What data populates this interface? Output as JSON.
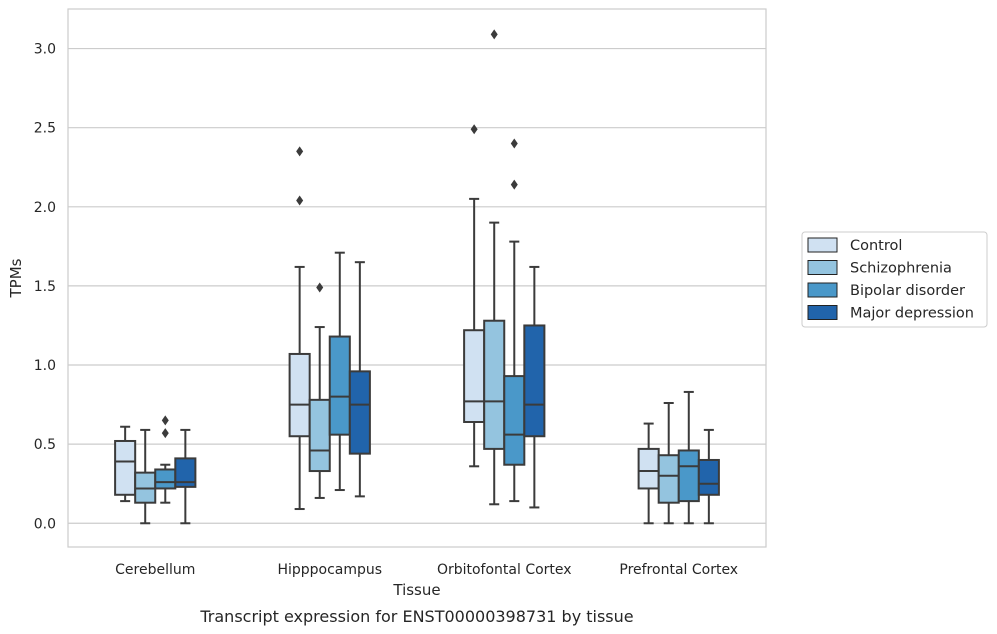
{
  "chart_data": {
    "type": "box",
    "xlabel": "Tissue",
    "ylabel": "TPMs",
    "caption": "Transcript expression for ENST00000398731 by tissue",
    "ylim": [
      -0.15,
      3.25
    ],
    "yticks": [
      0.0,
      0.5,
      1.0,
      1.5,
      2.0,
      2.5,
      3.0
    ],
    "ytick_labels": [
      "0.0",
      "0.5",
      "1.0",
      "1.5",
      "2.0",
      "2.5",
      "3.0"
    ],
    "grid": "horizontal",
    "legend_position": "right",
    "categories": [
      "Cerebellum",
      "Hipppocampus",
      "Orbitofontal Cortex",
      "Prefrontal Cortex"
    ],
    "series": [
      {
        "name": "Control",
        "color": "#d0e1f2",
        "boxes": [
          {
            "whislo": 0.14,
            "q1": 0.18,
            "med": 0.39,
            "q3": 0.52,
            "whishi": 0.61,
            "fliers": []
          },
          {
            "whislo": 0.09,
            "q1": 0.55,
            "med": 0.75,
            "q3": 1.07,
            "whishi": 1.62,
            "fliers": [
              2.04,
              2.35
            ]
          },
          {
            "whislo": 0.36,
            "q1": 0.64,
            "med": 0.77,
            "q3": 1.22,
            "whishi": 2.05,
            "fliers": [
              2.49
            ]
          },
          {
            "whislo": 0.0,
            "q1": 0.22,
            "med": 0.33,
            "q3": 0.47,
            "whishi": 0.63,
            "fliers": []
          }
        ]
      },
      {
        "name": "Schizophrenia",
        "color": "#94c4df",
        "boxes": [
          {
            "whislo": 0.0,
            "q1": 0.13,
            "med": 0.22,
            "q3": 0.32,
            "whishi": 0.59,
            "fliers": []
          },
          {
            "whislo": 0.16,
            "q1": 0.33,
            "med": 0.46,
            "q3": 0.78,
            "whishi": 1.24,
            "fliers": [
              1.49
            ]
          },
          {
            "whislo": 0.12,
            "q1": 0.47,
            "med": 0.77,
            "q3": 1.28,
            "whishi": 1.9,
            "fliers": [
              3.09
            ]
          },
          {
            "whislo": 0.0,
            "q1": 0.13,
            "med": 0.3,
            "q3": 0.43,
            "whishi": 0.76,
            "fliers": []
          }
        ]
      },
      {
        "name": "Bipolar disorder",
        "color": "#4a98c9",
        "boxes": [
          {
            "whislo": 0.13,
            "q1": 0.22,
            "med": 0.26,
            "q3": 0.34,
            "whishi": 0.37,
            "fliers": [
              0.57,
              0.65
            ]
          },
          {
            "whislo": 0.21,
            "q1": 0.56,
            "med": 0.8,
            "q3": 1.18,
            "whishi": 1.71,
            "fliers": []
          },
          {
            "whislo": 0.14,
            "q1": 0.37,
            "med": 0.56,
            "q3": 0.93,
            "whishi": 1.78,
            "fliers": [
              2.14,
              2.4
            ]
          },
          {
            "whislo": 0.0,
            "q1": 0.14,
            "med": 0.36,
            "q3": 0.46,
            "whishi": 0.83,
            "fliers": []
          }
        ]
      },
      {
        "name": "Major depression",
        "color": "#2164ab",
        "boxes": [
          {
            "whislo": 0.0,
            "q1": 0.23,
            "med": 0.26,
            "q3": 0.41,
            "whishi": 0.59,
            "fliers": []
          },
          {
            "whislo": 0.17,
            "q1": 0.44,
            "med": 0.75,
            "q3": 0.96,
            "whishi": 1.65,
            "fliers": []
          },
          {
            "whislo": 0.1,
            "q1": 0.55,
            "med": 0.75,
            "q3": 1.25,
            "whishi": 1.62,
            "fliers": []
          },
          {
            "whislo": 0.0,
            "q1": 0.18,
            "med": 0.25,
            "q3": 0.4,
            "whishi": 0.59,
            "fliers": []
          }
        ]
      }
    ]
  }
}
